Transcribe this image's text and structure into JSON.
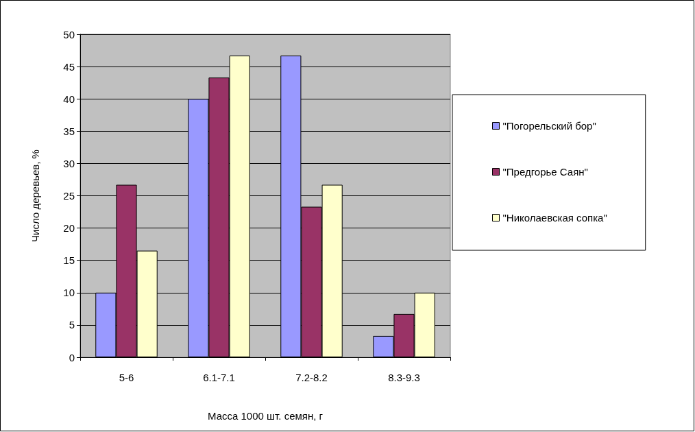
{
  "chart_data": {
    "type": "bar",
    "xlabel": "Масса 1000 шт. семян, г",
    "ylabel": "Число деревьев, %",
    "categories": [
      "5-6",
      "6.1-7.1",
      "7.2-8.2",
      "8.3-9.3"
    ],
    "series": [
      {
        "name": "\"Погорельский бор\"",
        "color": "#9999ff",
        "values": [
          10,
          40,
          46.7,
          3.3
        ]
      },
      {
        "name": "\"Предгорье Саян\"",
        "color": "#993366",
        "values": [
          26.7,
          43.3,
          23.3,
          6.7
        ]
      },
      {
        "name": "\"Николаевская сопка\"",
        "color": "#ffffcc",
        "values": [
          16.5,
          46.7,
          26.7,
          10
        ]
      }
    ],
    "ylim": [
      0,
      50
    ],
    "yticks": [
      0,
      5,
      10,
      15,
      20,
      25,
      30,
      35,
      40,
      45,
      50
    ],
    "grid": "y",
    "legend": "right"
  }
}
